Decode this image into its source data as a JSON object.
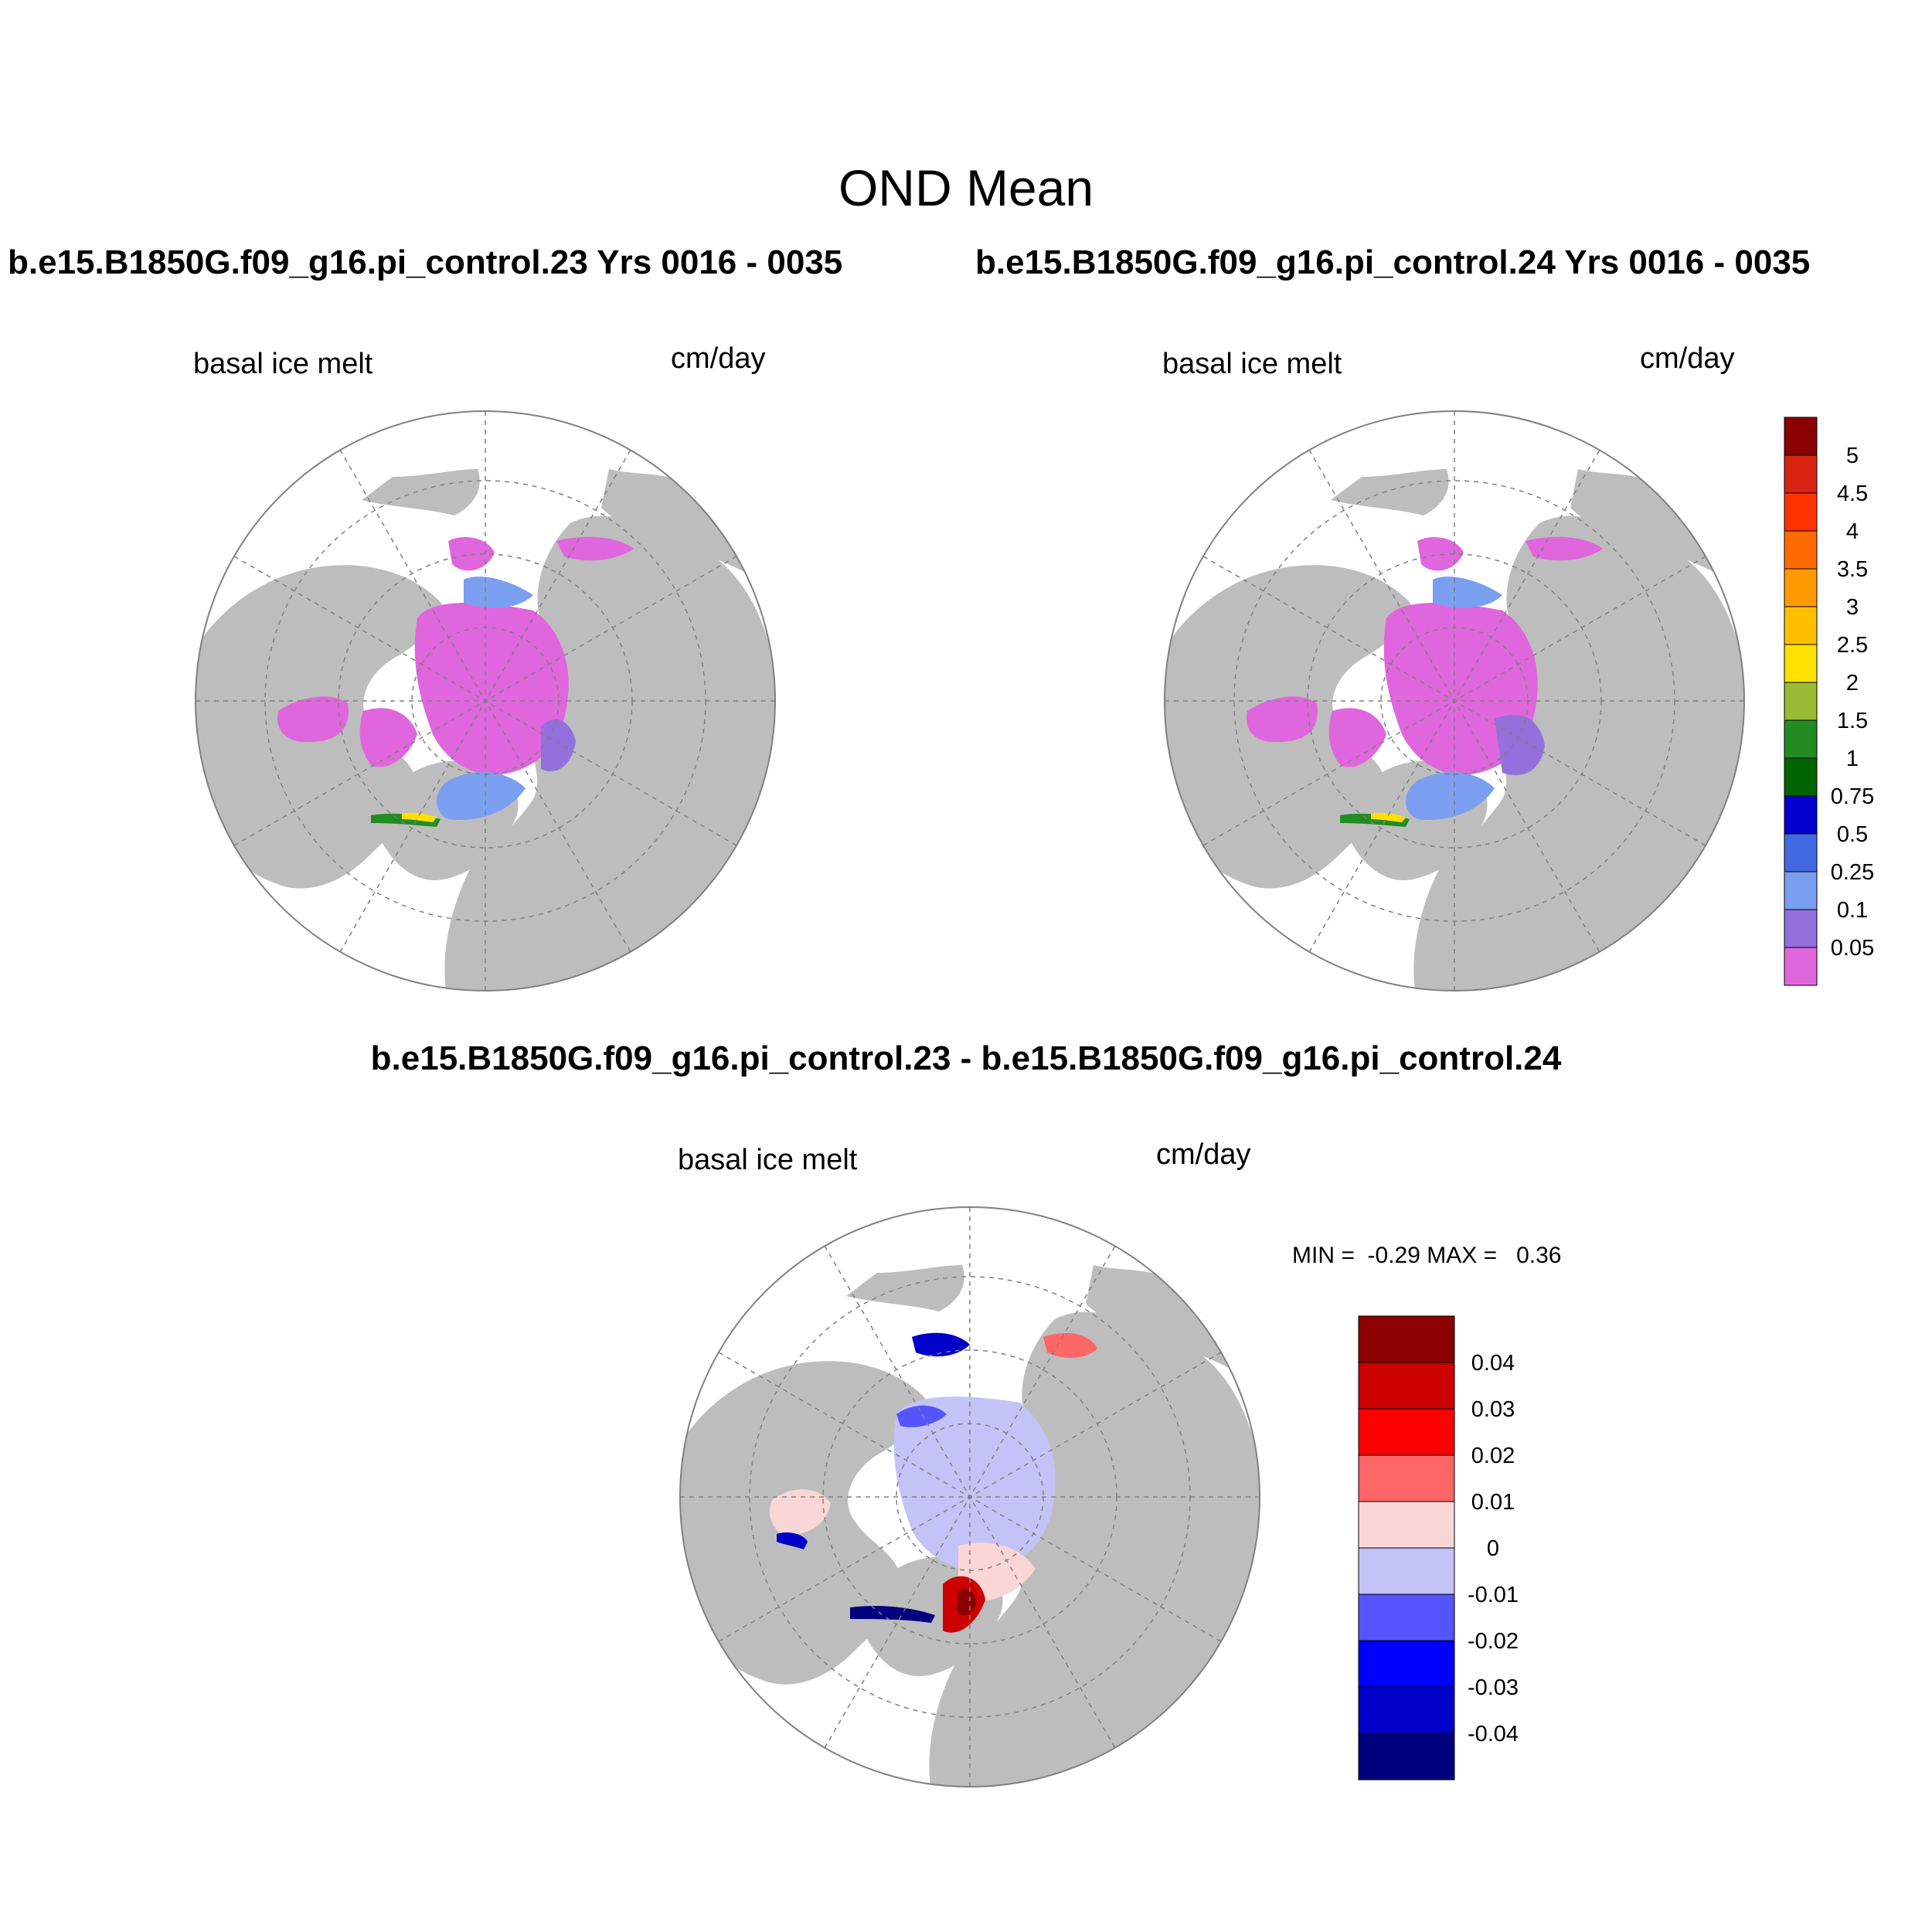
{
  "title": "OND Mean",
  "panels": [
    {
      "title": "b.e15.B1850G.f09_g16.pi_control.23  Yrs 0016 - 0035",
      "variable": "basal ice melt",
      "units": "cm/day"
    },
    {
      "title": "b.e15.B1850G.f09_g16.pi_control.24  Yrs 0016 - 0035",
      "variable": "basal ice melt",
      "units": "cm/day"
    }
  ],
  "difference_panel": {
    "title": "b.e15.B1850G.f09_g16.pi_control.23 - b.e15.B1850G.f09_g16.pi_control.24",
    "variable": "basal ice melt",
    "units": "cm/day",
    "minmax_text": "MIN =  -0.29 MAX =   0.36"
  },
  "colorbar_main": {
    "labels": [
      "5",
      "4.5",
      "4",
      "3.5",
      "3",
      "2.5",
      "2",
      "1.5",
      "1",
      "0.75",
      "0.5",
      "0.25",
      "0.1",
      "0.05"
    ],
    "colors": [
      "#8b0000",
      "#d62410",
      "#ff3300",
      "#ff6a00",
      "#ff9900",
      "#ffbf00",
      "#ffe100",
      "#99bb33",
      "#228b22",
      "#006400",
      "#0000cd",
      "#4169e1",
      "#7b9ff0",
      "#9370db",
      "#e066dd"
    ]
  },
  "colorbar_diff": {
    "labels": [
      "0.04",
      "0.03",
      "0.02",
      "0.01",
      "0",
      "-0.01",
      "-0.02",
      "-0.03",
      "-0.04"
    ],
    "colors": [
      "#8b0000",
      "#cc0000",
      "#ff0000",
      "#ff6666",
      "#fbd6d6",
      "#c3c3f7",
      "#5555ff",
      "#0000ff",
      "#0000c8",
      "#00007f"
    ]
  },
  "map_colors": {
    "land": "#bdbdbd",
    "ocean": "#ffffff",
    "grid": "#808080"
  }
}
